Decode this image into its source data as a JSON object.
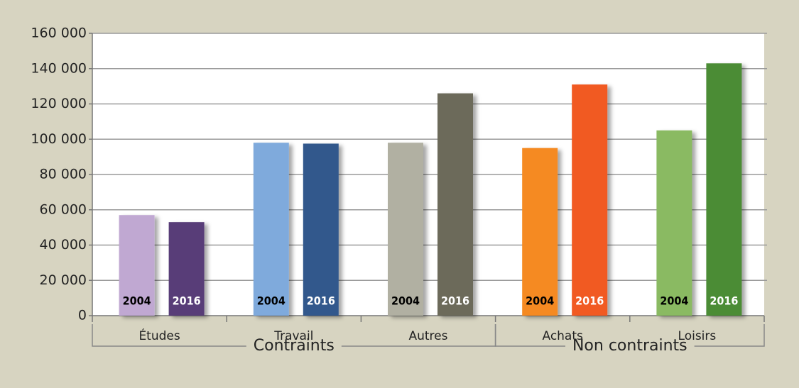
{
  "chart_data": {
    "type": "bar",
    "categories": [
      "Études",
      "Travail",
      "Autres",
      "Achats",
      "Loisirs"
    ],
    "groups": [
      "Contraints",
      "Non contraints"
    ],
    "series": [
      {
        "name": "2004",
        "label_color": "#000000",
        "colors": [
          "#c0a8d2",
          "#7faadc",
          "#b1b0a2",
          "#f58a22",
          "#8aba62"
        ],
        "values": [
          57000,
          98000,
          98000,
          95000,
          105000
        ]
      },
      {
        "name": "2016",
        "label_color": "#ffffff",
        "colors": [
          "#583e78",
          "#33588c",
          "#6c6a5a",
          "#f15a22",
          "#4c8c34"
        ],
        "values": [
          53000,
          97500,
          126000,
          131000,
          143000
        ]
      }
    ],
    "ylim": [
      0,
      160000
    ],
    "yticks": [
      0,
      {
        "value": 20000,
        "label": "20 000"
      },
      {
        "value": 40000,
        "label": "40 000"
      },
      {
        "value": 60000,
        "label": "60 000"
      },
      {
        "value": 80000,
        "label": "80 000"
      },
      {
        "value": 100000,
        "label": "100 000"
      },
      {
        "value": 120000,
        "label": "120 000"
      },
      {
        "value": 140000,
        "label": "140 000"
      },
      {
        "value": 160000,
        "label": "160 000"
      }
    ],
    "grid": true
  }
}
